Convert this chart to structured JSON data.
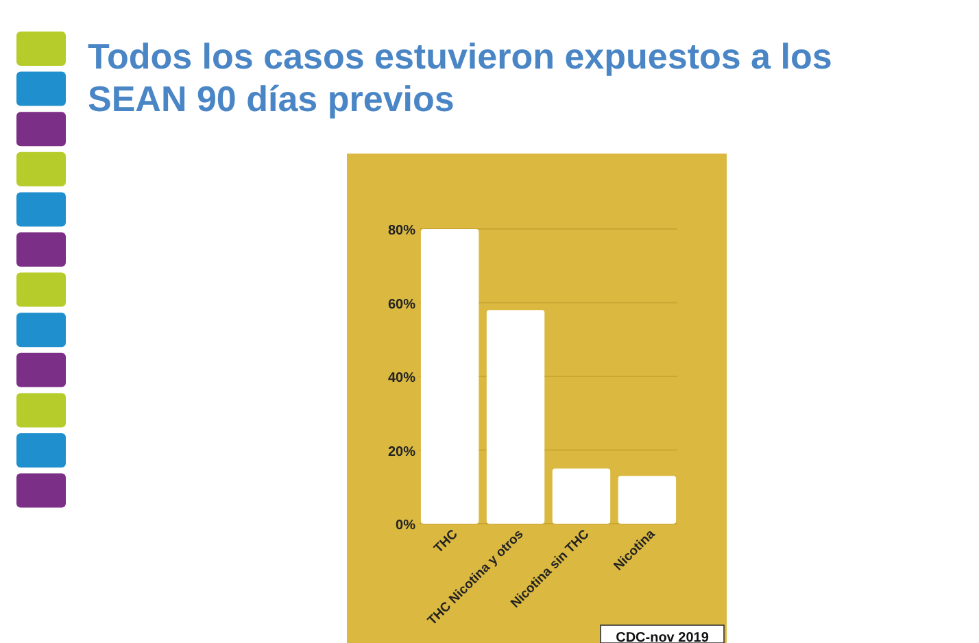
{
  "chart_data": {
    "type": "bar",
    "title": "Todos los casos estuvieron expuestos a los SEAN 90 días previos",
    "categories": [
      "THC",
      "THC Nicotina y otros",
      "Nicotina sin THC",
      "Nicotina"
    ],
    "values": [
      80,
      58,
      15,
      13
    ],
    "color": "#ffffff",
    "ylim": [
      0,
      80
    ],
    "yticks": [
      {
        "value": 0,
        "label": "0%"
      },
      {
        "value": 20,
        "label": "20%"
      },
      {
        "value": 40,
        "label": "40%"
      },
      {
        "value": 60,
        "label": "60%"
      },
      {
        "value": 80,
        "label": "80%"
      }
    ],
    "grid": "y",
    "annotations": [
      "CDC-nov 2019"
    ]
  }
}
